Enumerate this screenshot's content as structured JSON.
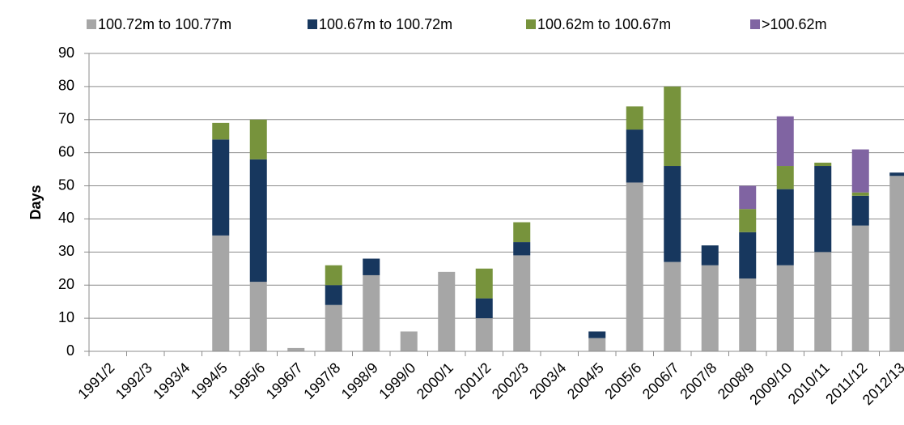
{
  "chart_data": {
    "type": "stacked_bar",
    "y_label": "Days",
    "categories": [
      "1991/2",
      "1992/3",
      "1993/4",
      "1994/5",
      "1995/6",
      "1996/7",
      "1997/8",
      "1998/9",
      "1999/0",
      "2000/1",
      "2001/2",
      "2002/3",
      "2003/4",
      "2004/5",
      "2005/6",
      "2006/7",
      "2007/8",
      "2008/9",
      "2009/10",
      "2010/11",
      "2011/12",
      "2012/13"
    ],
    "series": [
      {
        "name": "100.72m to 100.77m",
        "color": "#a6a6a6",
        "values": [
          0,
          0,
          0,
          35,
          21,
          1,
          14,
          23,
          6,
          24,
          10,
          29,
          0,
          4,
          51,
          27,
          26,
          22,
          26,
          30,
          38,
          53
        ]
      },
      {
        "name": "100.67m to 100.72m",
        "color": "#17375e",
        "values": [
          0,
          0,
          0,
          29,
          37,
          0,
          6,
          5,
          0,
          0,
          6,
          4,
          0,
          2,
          16,
          29,
          6,
          14,
          23,
          26,
          9,
          1
        ]
      },
      {
        "name": "100.62m to 100.67m",
        "color": "#77933c",
        "values": [
          0,
          0,
          0,
          5,
          12,
          0,
          6,
          0,
          0,
          0,
          9,
          6,
          0,
          0,
          7,
          24,
          0,
          7,
          7,
          1,
          1,
          0
        ]
      },
      {
        "name": ">100.62m",
        "color": "#8064a2",
        "values": [
          0,
          0,
          0,
          0,
          0,
          0,
          0,
          0,
          0,
          0,
          0,
          0,
          0,
          0,
          0,
          0,
          0,
          7,
          15,
          0,
          13,
          0
        ]
      }
    ],
    "ylim": [
      0,
      90
    ],
    "yticks": [
      0,
      10,
      20,
      30,
      40,
      50,
      60,
      70,
      80,
      90
    ],
    "grid": true,
    "legend": "top"
  }
}
